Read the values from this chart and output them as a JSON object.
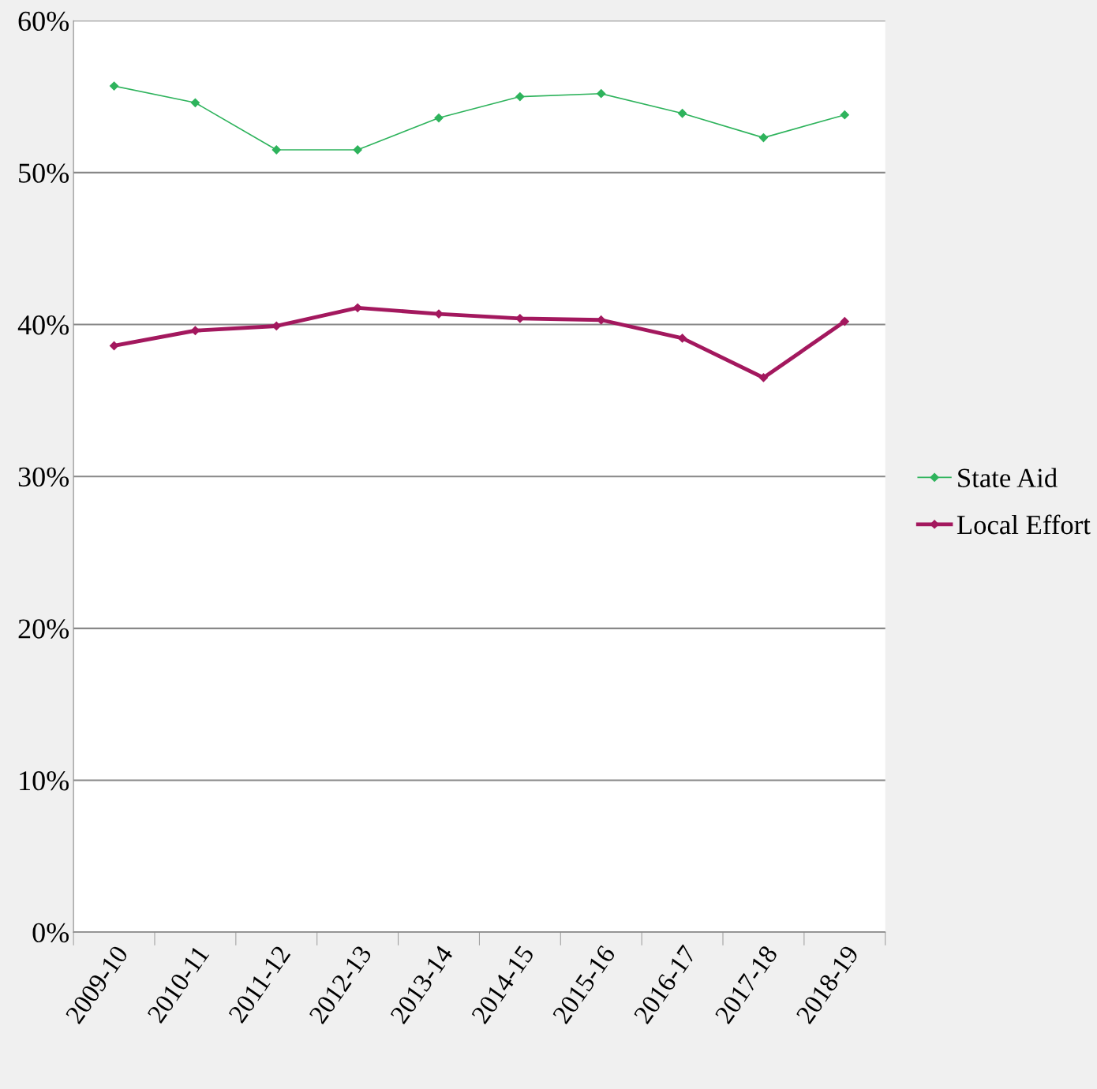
{
  "chart_data": {
    "type": "line",
    "categories": [
      "2009-10",
      "2010-11",
      "2011-12",
      "2012-13",
      "2013-14",
      "2014-15",
      "2015-16",
      "2016-17",
      "2017-18",
      "2018-19"
    ],
    "series": [
      {
        "name": "State Aid",
        "color": "#2eb35c",
        "values": [
          55.7,
          54.6,
          51.5,
          51.5,
          53.6,
          55.0,
          55.2,
          53.9,
          52.3,
          53.8
        ]
      },
      {
        "name": "Local Effort",
        "color": "#a3185e",
        "values": [
          38.6,
          39.6,
          39.9,
          41.1,
          40.7,
          40.4,
          40.3,
          39.1,
          36.5,
          40.2
        ]
      }
    ],
    "ylim": [
      0,
      60
    ],
    "yticks": [
      {
        "value": 0,
        "label": "0%"
      },
      {
        "value": 10,
        "label": "10%"
      },
      {
        "value": 20,
        "label": "20%"
      },
      {
        "value": 30,
        "label": "30%"
      },
      {
        "value": 40,
        "label": "40%"
      },
      {
        "value": 50,
        "label": "50%"
      },
      {
        "value": 60,
        "label": "60%"
      }
    ],
    "grid": "y",
    "legend": "right",
    "marker": "diamond",
    "line_style": "solid"
  }
}
